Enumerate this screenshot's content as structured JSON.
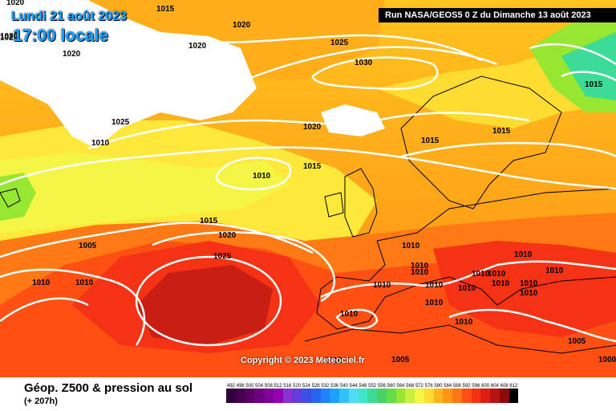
{
  "header": {
    "date": "Lundi 21 août 2023",
    "time": "17:00 locale",
    "run": "Run NASA/GEOS5 0 Z du Dimanche 13 août 2023"
  },
  "copyright": "Copyright © 2023 Meteociel.fr",
  "footer": {
    "title": "Géop. Z500 & pression au sol",
    "subtitle": "(+ 207h)"
  },
  "colors": {
    "land": "#ffffff",
    "isobar": "#ffffff",
    "date_text": "#17a6ff"
  },
  "legend": {
    "values": [
      "492",
      "496",
      "500",
      "504",
      "508",
      "512",
      "516",
      "520",
      "524",
      "528",
      "532",
      "536",
      "540",
      "544",
      "548",
      "552",
      "556",
      "560",
      "564",
      "568",
      "572",
      "576",
      "580",
      "584",
      "588",
      "592",
      "596",
      "600",
      "604",
      "608",
      "612"
    ],
    "colors": [
      "#32003c",
      "#460050",
      "#5a0064",
      "#6e007d",
      "#820096",
      "#9600b4",
      "#8c32d2",
      "#643cdc",
      "#3c50e6",
      "#2864f0",
      "#1e82fa",
      "#1ea0ff",
      "#32c3ff",
      "#50dcf5",
      "#3ce6c8",
      "#3cdc96",
      "#46d264",
      "#64dc46",
      "#96e632",
      "#c8f03c",
      "#f5f546",
      "#ffdc32",
      "#ffb41e",
      "#ff9614",
      "#ff7814",
      "#ff5014",
      "#f53214",
      "#dc1e14",
      "#b91414",
      "#8c0a0a",
      "#000000"
    ]
  },
  "isobar_labels": [
    "1020",
    "1015",
    "1020",
    "1025",
    "1020",
    "1020",
    "1025",
    "1030",
    "1025",
    "1015",
    "1020",
    "1015",
    "1015",
    "1010",
    "1015",
    "1010",
    "1005",
    "1015",
    "1020",
    "1025",
    "1010",
    "1020",
    "1010",
    "1010",
    "1010",
    "1010",
    "1010",
    "1010",
    "1010",
    "1010",
    "1010",
    "1010",
    "1010",
    "1010",
    "1010",
    "1010",
    "1010",
    "1010",
    "1010",
    "1005",
    "1000",
    "1010",
    "1005"
  ]
}
